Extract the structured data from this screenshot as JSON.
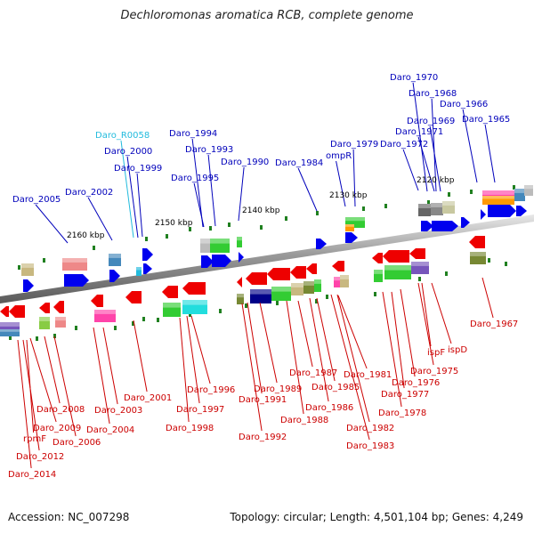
{
  "title": "Dechloromonas aromatica RCB, complete genome",
  "accession": "Accession: NC_007298",
  "topology": "Topology: circular; Length: 4,501,104 bp; Genes: 4,249",
  "colors": {
    "forward_gene": "#0000ee",
    "reverse_gene": "#ee0000",
    "forward_label": "#0000bb",
    "reverse_label": "#cc0000",
    "rna_label": "#22bbdd",
    "backbone": "#808080",
    "tick": "#208020"
  },
  "scale_labels": [
    "2160 kbp",
    "2150 kbp",
    "2140 kbp",
    "2130 kbp",
    "2120 kbp"
  ],
  "top_labels": [
    "Daro_2005",
    "Daro_2002",
    "Daro_R0058",
    "Daro_2000",
    "Daro_1999",
    "Daro_1994",
    "Daro_1993",
    "Daro_1995",
    "Daro_1990",
    "Daro_1984",
    "Daro_1979",
    "ompR",
    "Daro_1972",
    "Daro_1970",
    "Daro_1968",
    "Daro_1969",
    "Daro_1971",
    "Daro_1966",
    "Daro_1965"
  ],
  "bottom_labels": [
    "Daro_2014",
    "Daro_2012",
    "rpmF",
    "Daro_2009",
    "Daro_2008",
    "Daro_2006",
    "Daro_2004",
    "Daro_2003",
    "Daro_2001",
    "Daro_1998",
    "Daro_1997",
    "Daro_1996",
    "Daro_1992",
    "Daro_1991",
    "Daro_1989",
    "Daro_1988",
    "Daro_1987",
    "Daro_1986",
    "Daro_1985",
    "Daro_1983",
    "Daro_1982",
    "Daro_1981",
    "Daro_1978",
    "Daro_1977",
    "Daro_1976",
    "Daro_1975",
    "ispF",
    "ispD",
    "Daro_1967"
  ]
}
